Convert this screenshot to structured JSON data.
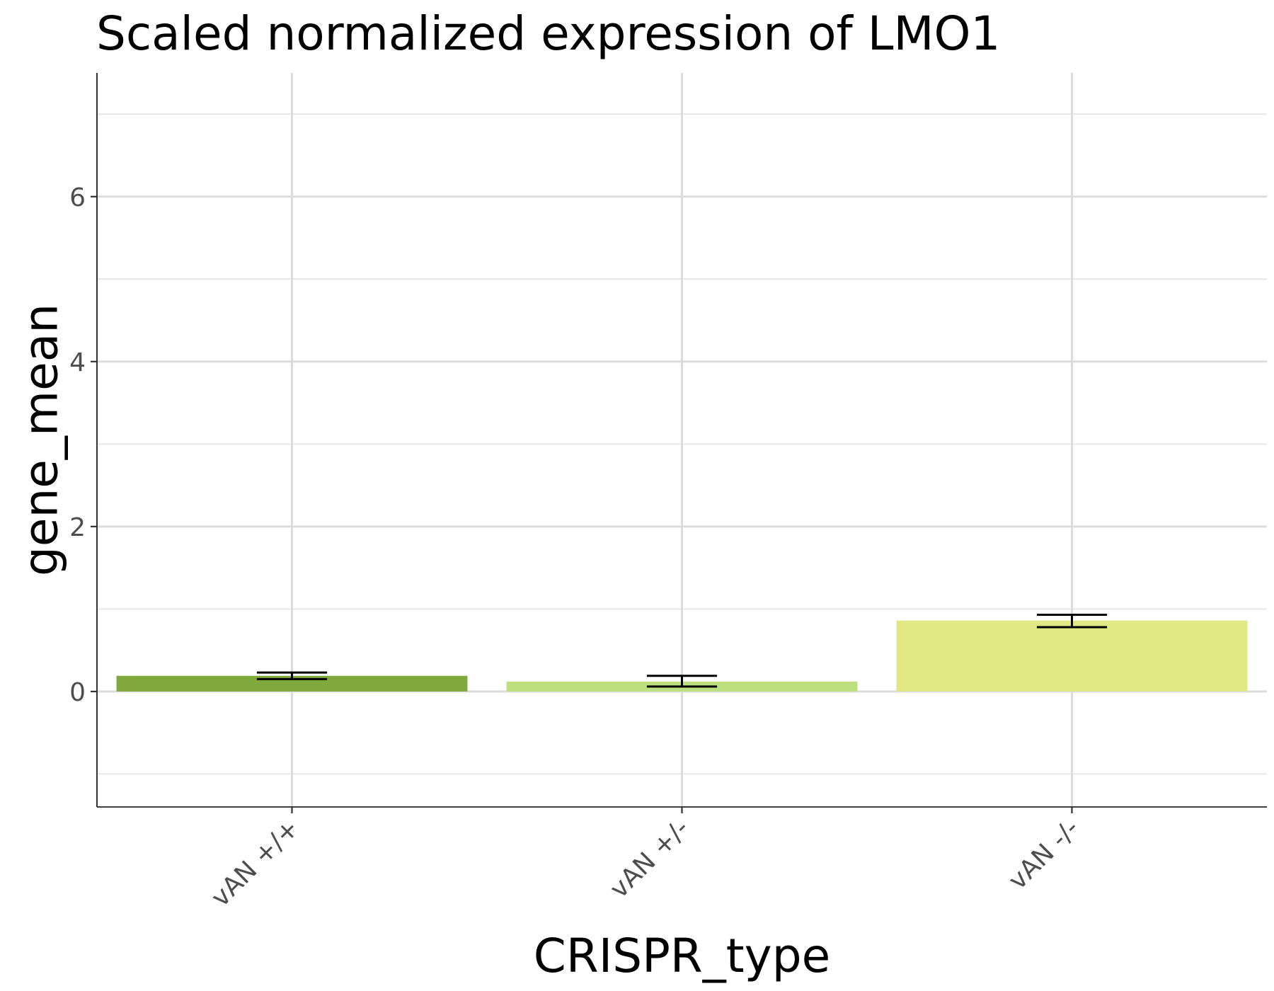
{
  "chart_data": {
    "type": "bar",
    "title": "Scaled normalized expression of LMO1",
    "xlabel": "CRISPR_type",
    "ylabel": "gene_mean",
    "categories": [
      "vAN +/+",
      "vAN +/-",
      "vAN -/-"
    ],
    "values": [
      0.19,
      0.12,
      0.86
    ],
    "error_low": [
      0.15,
      0.06,
      0.78
    ],
    "error_high": [
      0.23,
      0.19,
      0.93
    ],
    "colors": [
      "#7fa83d",
      "#bde07e",
      "#dfe882"
    ],
    "ylim": [
      -1.4,
      7.5
    ],
    "yticks": [
      0,
      2,
      4,
      6
    ],
    "y_minor_ticks": [
      -1,
      1,
      3,
      5,
      7
    ],
    "grid": true,
    "legend": "none"
  }
}
